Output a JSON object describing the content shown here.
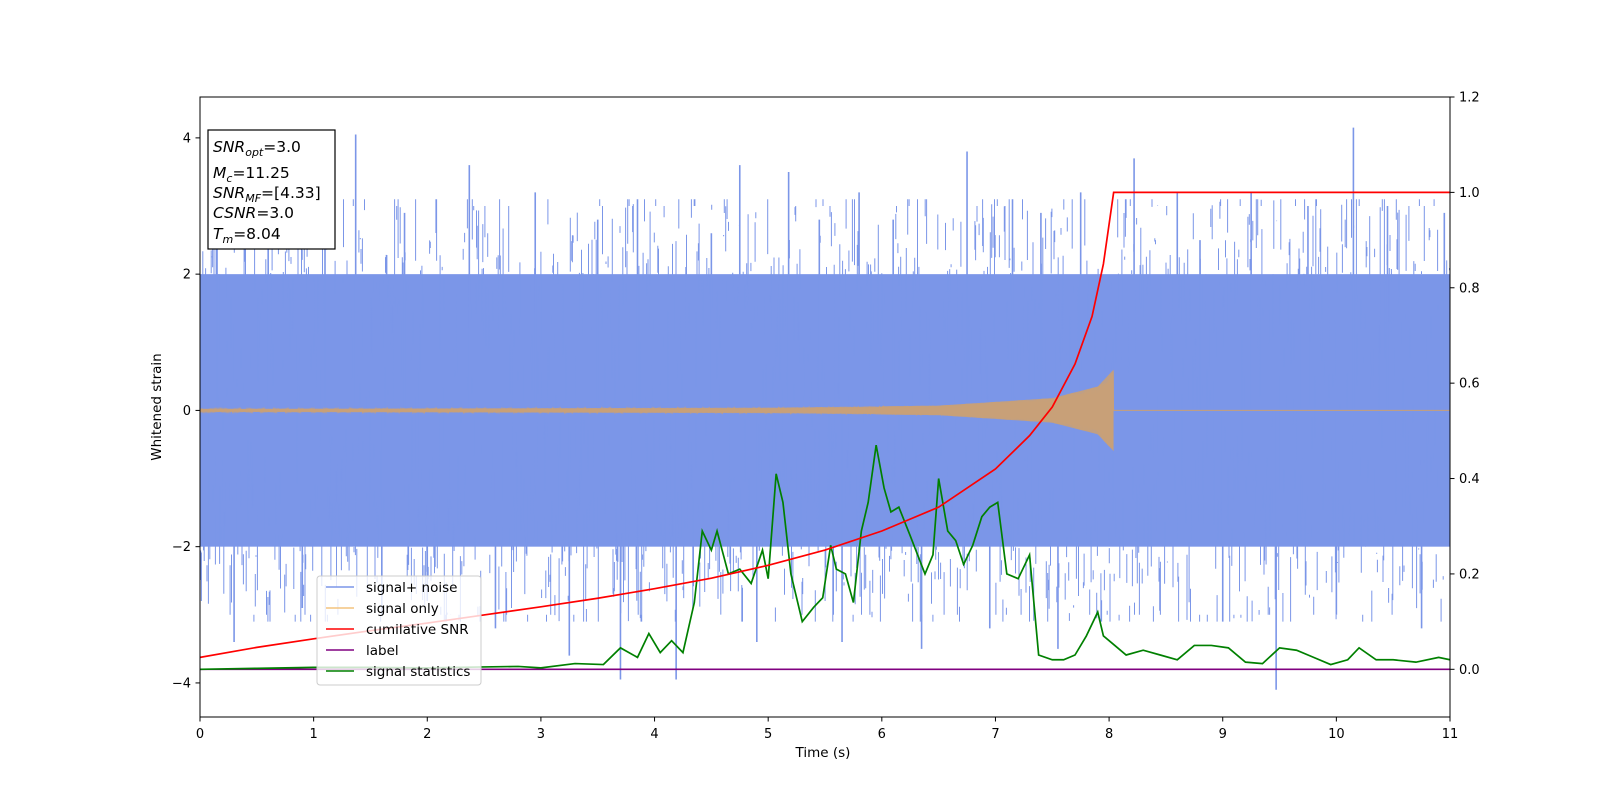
{
  "chart_data": {
    "type": "line",
    "xlabel": "Time (s)",
    "ylabel": "Whitened strain",
    "xlim": [
      0,
      11
    ],
    "ylim_left": [
      -4.5,
      4.6
    ],
    "ylim_right": [
      -0.1,
      1.2
    ],
    "x_ticks": [
      "0",
      "1",
      "2",
      "3",
      "4",
      "5",
      "6",
      "7",
      "8",
      "9",
      "10",
      "11"
    ],
    "y_ticks_left": [
      "4",
      "2",
      "0",
      "−2",
      "−4"
    ],
    "y_ticks_right": [
      "1.2",
      "1.0",
      "0.8",
      "0.6",
      "0.4",
      "0.2",
      "0.0"
    ],
    "grid": false,
    "legend_position": "lower-left",
    "legend": [
      "signal+ noise",
      "signal only",
      "cumilative SNR",
      "label",
      "signal statistics"
    ],
    "info_box": {
      "snr_opt": "=3.0",
      "mc": "=11.25",
      "snr_mf": "=[4.33]",
      "csnr": "=3.0",
      "tm": "=8.04"
    },
    "merger_time": 8.04,
    "series": [
      {
        "name": "signal+ noise",
        "axis": "left",
        "color": "#7b96e8",
        "band_low": -2.0,
        "band_high": 2.0,
        "spikes": [
          [
            0.15,
            2.5
          ],
          [
            0.3,
            -3.4
          ],
          [
            0.6,
            2.6
          ],
          [
            0.9,
            -2.9
          ],
          [
            1.1,
            3.0
          ],
          [
            1.37,
            4.05
          ],
          [
            1.6,
            -3.0
          ],
          [
            1.8,
            2.9
          ],
          [
            2.0,
            -2.8
          ],
          [
            2.37,
            3.6
          ],
          [
            2.6,
            -3.2
          ],
          [
            2.95,
            3.2
          ],
          [
            3.25,
            -3.6
          ],
          [
            3.5,
            2.8
          ],
          [
            3.7,
            -3.95
          ],
          [
            3.85,
            3.1
          ],
          [
            4.19,
            -3.95
          ],
          [
            4.5,
            2.6
          ],
          [
            4.75,
            3.6
          ],
          [
            4.9,
            -3.4
          ],
          [
            5.18,
            3.5
          ],
          [
            5.45,
            2.8
          ],
          [
            5.65,
            -3.4
          ],
          [
            5.8,
            3.2
          ],
          [
            6.1,
            2.8
          ],
          [
            6.35,
            -3.5
          ],
          [
            6.75,
            3.8
          ],
          [
            6.95,
            -3.2
          ],
          [
            7.15,
            3.1
          ],
          [
            7.4,
            2.9
          ],
          [
            7.55,
            -3.5
          ],
          [
            7.75,
            3.2
          ],
          [
            8.22,
            3.7
          ],
          [
            8.6,
            3.2
          ],
          [
            8.8,
            2.5
          ],
          [
            9.0,
            -3.1
          ],
          [
            9.25,
            3.2
          ],
          [
            9.47,
            -4.1
          ],
          [
            9.75,
            3.0
          ],
          [
            10.0,
            -3.0
          ],
          [
            10.15,
            4.15
          ],
          [
            10.45,
            3.0
          ],
          [
            10.75,
            -3.2
          ],
          [
            10.95,
            2.9
          ]
        ]
      },
      {
        "name": "signal only",
        "axis": "left",
        "color": "#c8a078",
        "envelope": [
          [
            0,
            0.02
          ],
          [
            5.0,
            0.04
          ],
          [
            6.5,
            0.07
          ],
          [
            7.5,
            0.18
          ],
          [
            7.9,
            0.35
          ],
          [
            8.04,
            0.6
          ]
        ]
      },
      {
        "name": "cumilative SNR",
        "axis": "right",
        "color": "#ff0000",
        "x": [
          0,
          0.5,
          1.0,
          1.5,
          2.0,
          2.5,
          3.0,
          3.5,
          4.0,
          4.5,
          5.0,
          5.5,
          6.0,
          6.5,
          7.0,
          7.3,
          7.5,
          7.7,
          7.85,
          7.95,
          8.04,
          8.05,
          11.0
        ],
        "y": [
          0.025,
          0.046,
          0.064,
          0.081,
          0.097,
          0.114,
          0.131,
          0.149,
          0.169,
          0.191,
          0.218,
          0.25,
          0.29,
          0.34,
          0.42,
          0.49,
          0.55,
          0.64,
          0.74,
          0.85,
          1.0,
          1.0,
          1.0
        ]
      },
      {
        "name": "label",
        "axis": "right",
        "color": "#800080",
        "x": [
          0,
          11
        ],
        "y": [
          0.0,
          0.0
        ]
      },
      {
        "name": "signal statistics",
        "axis": "right",
        "color": "#008000",
        "x": [
          0,
          0.5,
          1.0,
          1.5,
          2.0,
          2.5,
          2.8,
          3.0,
          3.3,
          3.55,
          3.7,
          3.85,
          3.95,
          4.05,
          4.15,
          4.25,
          4.35,
          4.42,
          4.5,
          4.55,
          4.65,
          4.75,
          4.85,
          4.95,
          5.0,
          5.07,
          5.13,
          5.2,
          5.3,
          5.4,
          5.48,
          5.55,
          5.6,
          5.68,
          5.75,
          5.82,
          5.88,
          5.95,
          6.02,
          6.08,
          6.15,
          6.25,
          6.38,
          6.45,
          6.5,
          6.58,
          6.65,
          6.72,
          6.8,
          6.88,
          6.95,
          7.02,
          7.1,
          7.2,
          7.3,
          7.38,
          7.5,
          7.6,
          7.7,
          7.8,
          7.9,
          7.95,
          8.05,
          8.15,
          8.3,
          8.45,
          8.6,
          8.75,
          8.9,
          9.05,
          9.2,
          9.35,
          9.5,
          9.65,
          9.8,
          9.95,
          10.1,
          10.2,
          10.35,
          10.5,
          10.7,
          10.9,
          11.0
        ],
        "y": [
          0.0,
          0.002,
          0.004,
          0.004,
          0.003,
          0.005,
          0.006,
          0.003,
          0.012,
          0.01,
          0.045,
          0.025,
          0.075,
          0.035,
          0.06,
          0.035,
          0.14,
          0.29,
          0.25,
          0.29,
          0.2,
          0.21,
          0.18,
          0.25,
          0.19,
          0.41,
          0.35,
          0.2,
          0.1,
          0.13,
          0.15,
          0.26,
          0.21,
          0.2,
          0.14,
          0.29,
          0.35,
          0.47,
          0.38,
          0.33,
          0.34,
          0.28,
          0.2,
          0.24,
          0.4,
          0.29,
          0.27,
          0.22,
          0.26,
          0.32,
          0.34,
          0.35,
          0.2,
          0.19,
          0.24,
          0.03,
          0.02,
          0.02,
          0.03,
          0.07,
          0.12,
          0.07,
          0.05,
          0.03,
          0.04,
          0.03,
          0.02,
          0.05,
          0.05,
          0.045,
          0.015,
          0.012,
          0.045,
          0.04,
          0.025,
          0.01,
          0.02,
          0.045,
          0.02,
          0.02,
          0.015,
          0.025,
          0.02
        ]
      }
    ]
  }
}
